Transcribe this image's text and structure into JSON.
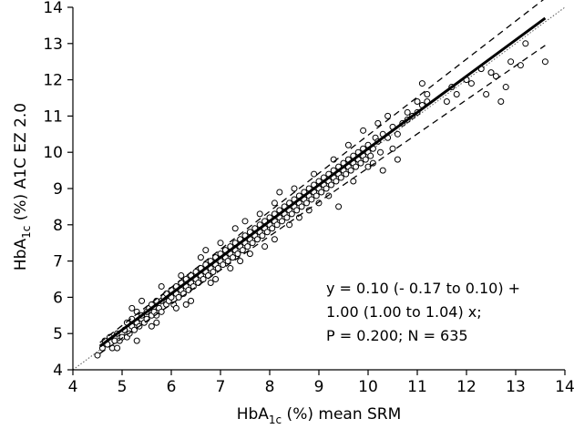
{
  "chart_data": {
    "type": "scatter",
    "title": "",
    "xlabel": {
      "base": "HbA",
      "sub": "1c",
      "rest": " (%) mean SRM"
    },
    "ylabel": {
      "base": "HbA",
      "sub": "1c",
      "rest": " (%) A1C EZ 2.0"
    },
    "xlim": [
      4,
      14
    ],
    "ylim": [
      4,
      14
    ],
    "x_ticks": [
      "4",
      "5",
      "6",
      "7",
      "8",
      "9",
      "10",
      "11",
      "12",
      "13",
      "14"
    ],
    "y_ticks": [
      "4",
      "5",
      "6",
      "7",
      "8",
      "9",
      "10",
      "11",
      "12",
      "13",
      "14"
    ],
    "grid": false,
    "regression": {
      "intercept": 0.1,
      "slope": 1.0,
      "x_range": [
        4.55,
        13.6
      ],
      "style": "solid-thick"
    },
    "confidence_bands": {
      "lower": [
        [
          4.55,
          4.45
        ],
        [
          13.6,
          12.95
        ]
      ],
      "upper": [
        [
          4.55,
          4.75
        ],
        [
          13.6,
          14.25
        ]
      ],
      "style": "dashed"
    },
    "identity_line": {
      "from": [
        4,
        4
      ],
      "to": [
        14,
        14
      ],
      "style": "dotted"
    },
    "annotation": [
      "y = 0.10 (- 0.17 to 0.10) +",
      "1.00 (1.00 to 1.04) x;",
      "P = 0.200; N = 635"
    ],
    "points": [
      [
        4.5,
        4.4
      ],
      [
        4.6,
        4.6
      ],
      [
        4.65,
        4.8
      ],
      [
        4.7,
        4.7
      ],
      [
        4.75,
        4.9
      ],
      [
        4.8,
        4.6
      ],
      [
        4.85,
        4.8
      ],
      [
        4.9,
        5.0
      ],
      [
        4.95,
        4.8
      ],
      [
        5.0,
        5.0
      ],
      [
        5.0,
        4.9
      ],
      [
        5.05,
        5.1
      ],
      [
        5.1,
        5.3
      ],
      [
        5.1,
        4.9
      ],
      [
        5.15,
        5.0
      ],
      [
        5.2,
        5.2
      ],
      [
        5.2,
        5.4
      ],
      [
        5.25,
        5.1
      ],
      [
        5.3,
        5.3
      ],
      [
        5.3,
        5.6
      ],
      [
        5.35,
        5.2
      ],
      [
        5.4,
        5.4
      ],
      [
        5.4,
        5.5
      ],
      [
        5.45,
        5.3
      ],
      [
        5.5,
        5.6
      ],
      [
        5.5,
        5.4
      ],
      [
        5.55,
        5.7
      ],
      [
        5.6,
        5.5
      ],
      [
        5.6,
        5.8
      ],
      [
        5.65,
        5.6
      ],
      [
        5.7,
        5.9
      ],
      [
        5.7,
        5.5
      ],
      [
        5.75,
        5.7
      ],
      [
        5.8,
        5.9
      ],
      [
        5.8,
        5.6
      ],
      [
        5.85,
        6.0
      ],
      [
        5.9,
        5.8
      ],
      [
        5.9,
        6.1
      ],
      [
        5.95,
        5.9
      ],
      [
        6.0,
        6.0
      ],
      [
        6.0,
        6.2
      ],
      [
        6.05,
        5.8
      ],
      [
        6.1,
        6.1
      ],
      [
        6.1,
        6.3
      ],
      [
        6.15,
        6.0
      ],
      [
        6.2,
        6.2
      ],
      [
        6.2,
        6.4
      ],
      [
        6.25,
        6.1
      ],
      [
        6.3,
        6.3
      ],
      [
        6.3,
        6.5
      ],
      [
        6.35,
        6.2
      ],
      [
        6.4,
        6.4
      ],
      [
        6.4,
        6.6
      ],
      [
        6.45,
        6.3
      ],
      [
        6.5,
        6.5
      ],
      [
        6.5,
        6.7
      ],
      [
        6.55,
        6.4
      ],
      [
        6.6,
        6.6
      ],
      [
        6.6,
        6.8
      ],
      [
        6.65,
        6.5
      ],
      [
        6.7,
        6.7
      ],
      [
        6.7,
        6.9
      ],
      [
        6.75,
        6.6
      ],
      [
        6.8,
        6.8
      ],
      [
        6.8,
        7.0
      ],
      [
        6.85,
        6.7
      ],
      [
        6.9,
        6.9
      ],
      [
        6.9,
        7.1
      ],
      [
        6.95,
        6.8
      ],
      [
        7.0,
        7.0
      ],
      [
        7.0,
        7.2
      ],
      [
        7.05,
        6.9
      ],
      [
        7.1,
        7.1
      ],
      [
        7.1,
        7.3
      ],
      [
        7.15,
        7.0
      ],
      [
        7.2,
        7.2
      ],
      [
        7.2,
        7.4
      ],
      [
        7.25,
        7.1
      ],
      [
        7.3,
        7.3
      ],
      [
        7.3,
        7.5
      ],
      [
        7.35,
        7.2
      ],
      [
        7.4,
        7.4
      ],
      [
        7.4,
        7.6
      ],
      [
        7.45,
        7.3
      ],
      [
        7.5,
        7.5
      ],
      [
        7.5,
        7.7
      ],
      [
        7.55,
        7.4
      ],
      [
        7.6,
        7.6
      ],
      [
        7.6,
        7.8
      ],
      [
        7.65,
        7.5
      ],
      [
        7.7,
        7.7
      ],
      [
        7.7,
        7.9
      ],
      [
        7.75,
        7.6
      ],
      [
        7.8,
        7.8
      ],
      [
        7.8,
        8.0
      ],
      [
        7.85,
        7.7
      ],
      [
        7.9,
        7.9
      ],
      [
        7.9,
        8.1
      ],
      [
        7.95,
        7.8
      ],
      [
        8.0,
        8.0
      ],
      [
        8.0,
        8.2
      ],
      [
        8.05,
        7.9
      ],
      [
        8.1,
        8.1
      ],
      [
        8.1,
        8.3
      ],
      [
        8.15,
        8.0
      ],
      [
        8.2,
        8.2
      ],
      [
        8.2,
        8.4
      ],
      [
        8.25,
        8.1
      ],
      [
        8.3,
        8.3
      ],
      [
        8.3,
        8.5
      ],
      [
        8.35,
        8.2
      ],
      [
        8.4,
        8.4
      ],
      [
        8.4,
        8.6
      ],
      [
        8.45,
        8.3
      ],
      [
        8.5,
        8.5
      ],
      [
        8.5,
        8.7
      ],
      [
        8.55,
        8.4
      ],
      [
        8.6,
        8.6
      ],
      [
        8.6,
        8.8
      ],
      [
        8.65,
        8.5
      ],
      [
        8.7,
        8.7
      ],
      [
        8.7,
        8.9
      ],
      [
        8.75,
        8.6
      ],
      [
        8.8,
        8.8
      ],
      [
        8.8,
        9.0
      ],
      [
        8.85,
        8.7
      ],
      [
        8.9,
        8.9
      ],
      [
        8.9,
        9.1
      ],
      [
        8.95,
        8.8
      ],
      [
        9.0,
        9.0
      ],
      [
        9.0,
        9.2
      ],
      [
        9.05,
        8.9
      ],
      [
        9.1,
        9.1
      ],
      [
        9.1,
        9.3
      ],
      [
        9.15,
        9.0
      ],
      [
        9.2,
        9.2
      ],
      [
        9.2,
        9.4
      ],
      [
        9.25,
        9.1
      ],
      [
        9.3,
        9.3
      ],
      [
        9.3,
        9.5
      ],
      [
        9.35,
        9.2
      ],
      [
        9.4,
        9.4
      ],
      [
        9.4,
        9.6
      ],
      [
        9.45,
        9.3
      ],
      [
        9.5,
        9.5
      ],
      [
        9.5,
        9.7
      ],
      [
        9.55,
        9.4
      ],
      [
        9.6,
        9.6
      ],
      [
        9.6,
        9.8
      ],
      [
        9.65,
        9.5
      ],
      [
        9.7,
        9.7
      ],
      [
        9.7,
        9.9
      ],
      [
        9.75,
        9.6
      ],
      [
        9.8,
        9.8
      ],
      [
        9.8,
        10.0
      ],
      [
        9.85,
        9.7
      ],
      [
        9.9,
        9.9
      ],
      [
        9.9,
        10.1
      ],
      [
        9.95,
        9.8
      ],
      [
        10.0,
        10.0
      ],
      [
        10.0,
        10.2
      ],
      [
        10.05,
        9.9
      ],
      [
        10.1,
        10.1
      ],
      [
        10.15,
        10.4
      ],
      [
        10.2,
        10.3
      ],
      [
        10.25,
        10.0
      ],
      [
        10.3,
        10.5
      ],
      [
        10.4,
        10.4
      ],
      [
        10.5,
        10.7
      ],
      [
        10.6,
        10.5
      ],
      [
        10.7,
        10.8
      ],
      [
        10.8,
        10.9
      ],
      [
        10.9,
        11.0
      ],
      [
        11.0,
        11.1
      ],
      [
        11.1,
        11.3
      ],
      [
        11.2,
        11.4
      ],
      [
        11.7,
        11.8
      ],
      [
        11.8,
        11.6
      ],
      [
        12.1,
        11.9
      ],
      [
        12.3,
        12.3
      ],
      [
        12.6,
        12.1
      ],
      [
        12.8,
        11.8
      ],
      [
        13.1,
        12.4
      ],
      [
        13.6,
        12.5
      ],
      [
        11.1,
        11.9
      ],
      [
        11.6,
        11.4
      ],
      [
        12.0,
        12.0
      ],
      [
        12.9,
        12.5
      ],
      [
        13.2,
        13.0
      ],
      [
        12.4,
        11.6
      ],
      [
        12.7,
        11.4
      ],
      [
        12.5,
        12.2
      ],
      [
        4.9,
        4.6
      ],
      [
        5.3,
        4.8
      ],
      [
        5.6,
        5.2
      ],
      [
        6.1,
        5.7
      ],
      [
        6.4,
        5.9
      ],
      [
        6.9,
        6.5
      ],
      [
        7.4,
        7.0
      ],
      [
        7.6,
        7.2
      ],
      [
        8.1,
        7.6
      ],
      [
        8.6,
        8.2
      ],
      [
        9.0,
        8.6
      ],
      [
        9.4,
        8.5
      ],
      [
        10.0,
        9.6
      ],
      [
        10.3,
        9.5
      ],
      [
        10.6,
        9.8
      ],
      [
        10.5,
        10.1
      ],
      [
        5.4,
        5.9
      ],
      [
        5.8,
        6.3
      ],
      [
        6.2,
        6.6
      ],
      [
        6.6,
        7.1
      ],
      [
        7.0,
        7.5
      ],
      [
        7.3,
        7.9
      ],
      [
        7.8,
        8.3
      ],
      [
        8.1,
        8.6
      ],
      [
        8.5,
        9.0
      ],
      [
        8.9,
        9.4
      ],
      [
        9.3,
        9.8
      ],
      [
        9.6,
        10.2
      ],
      [
        9.9,
        10.6
      ],
      [
        10.2,
        10.8
      ],
      [
        10.4,
        11.0
      ],
      [
        10.8,
        11.1
      ],
      [
        11.0,
        11.4
      ],
      [
        11.2,
        11.6
      ],
      [
        5.2,
        5.7
      ],
      [
        6.7,
        7.3
      ],
      [
        7.5,
        8.1
      ],
      [
        8.2,
        8.9
      ],
      [
        6.8,
        6.4
      ],
      [
        7.9,
        7.4
      ],
      [
        8.8,
        8.4
      ],
      [
        9.7,
        9.2
      ],
      [
        5.7,
        5.3
      ],
      [
        6.3,
        5.8
      ],
      [
        7.2,
        6.8
      ],
      [
        8.4,
        8.0
      ],
      [
        9.2,
        8.8
      ],
      [
        10.1,
        9.7
      ]
    ]
  }
}
